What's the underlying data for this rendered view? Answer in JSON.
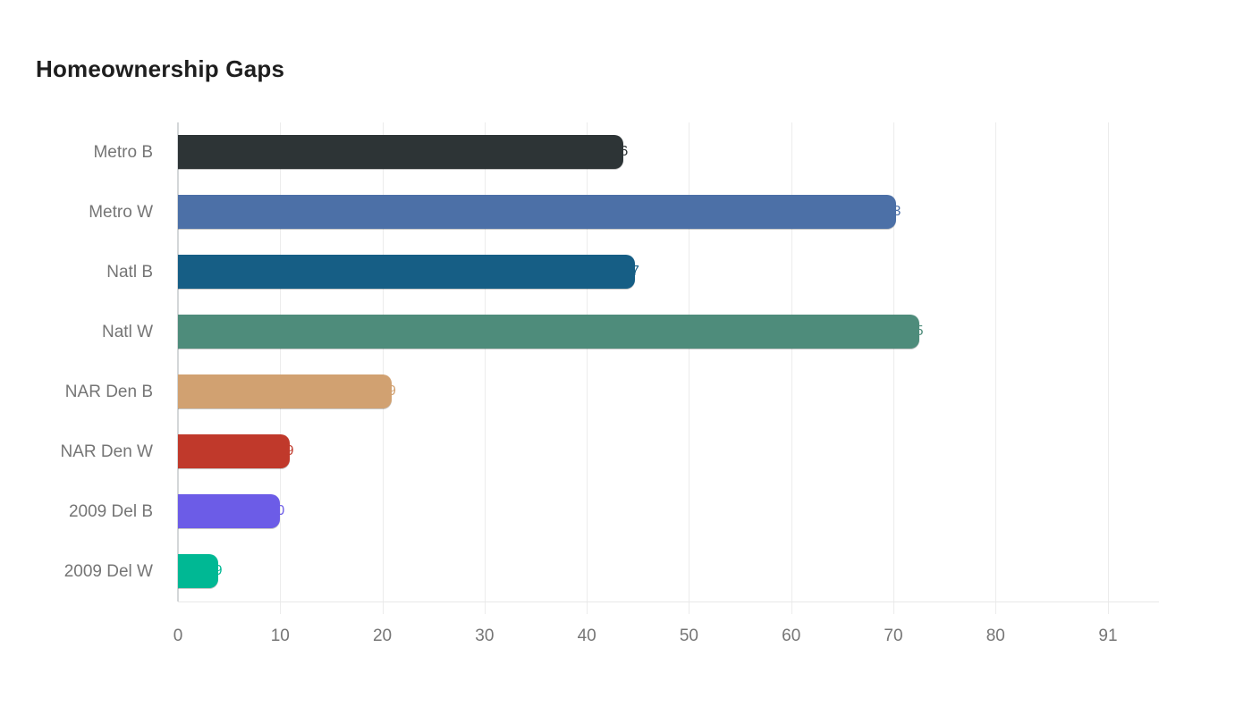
{
  "title": "Homeownership Gaps",
  "chart_data": {
    "type": "bar",
    "orientation": "horizontal",
    "title": "Homeownership Gaps",
    "categories": [
      "Metro B",
      "Metro W",
      "Natl B",
      "Natl W",
      "NAR Den B",
      "NAR Den W",
      "2009 Del B",
      "2009 Del W"
    ],
    "values": [
      43.6,
      70.3,
      44.7,
      72.5,
      20.9,
      10.9,
      10,
      3.9
    ],
    "bar_colors": [
      "#2d3436",
      "#4c70a7",
      "#165e85",
      "#4e8c7b",
      "#d1a171",
      "#c0392b",
      "#6c5ce7",
      "#00b894"
    ],
    "x_ticks": [
      0,
      10,
      20,
      30,
      40,
      50,
      60,
      70,
      80,
      91
    ],
    "xlim": [
      0,
      91
    ],
    "xlabel": "",
    "ylabel": "",
    "grid": "vertical-gridlines",
    "legend": "none",
    "value_labels": "drawn in bar color at bar end (mostly hidden, small fragment visible past rounded tip)"
  },
  "styles": {
    "background": "#ffffff",
    "title_color": "#1e1e1e",
    "axis_label_color": "#757575",
    "grid_color": "#ececec",
    "y_axis_line_color": "#d4d7d9",
    "baseline_color": "#e8e8e8"
  }
}
